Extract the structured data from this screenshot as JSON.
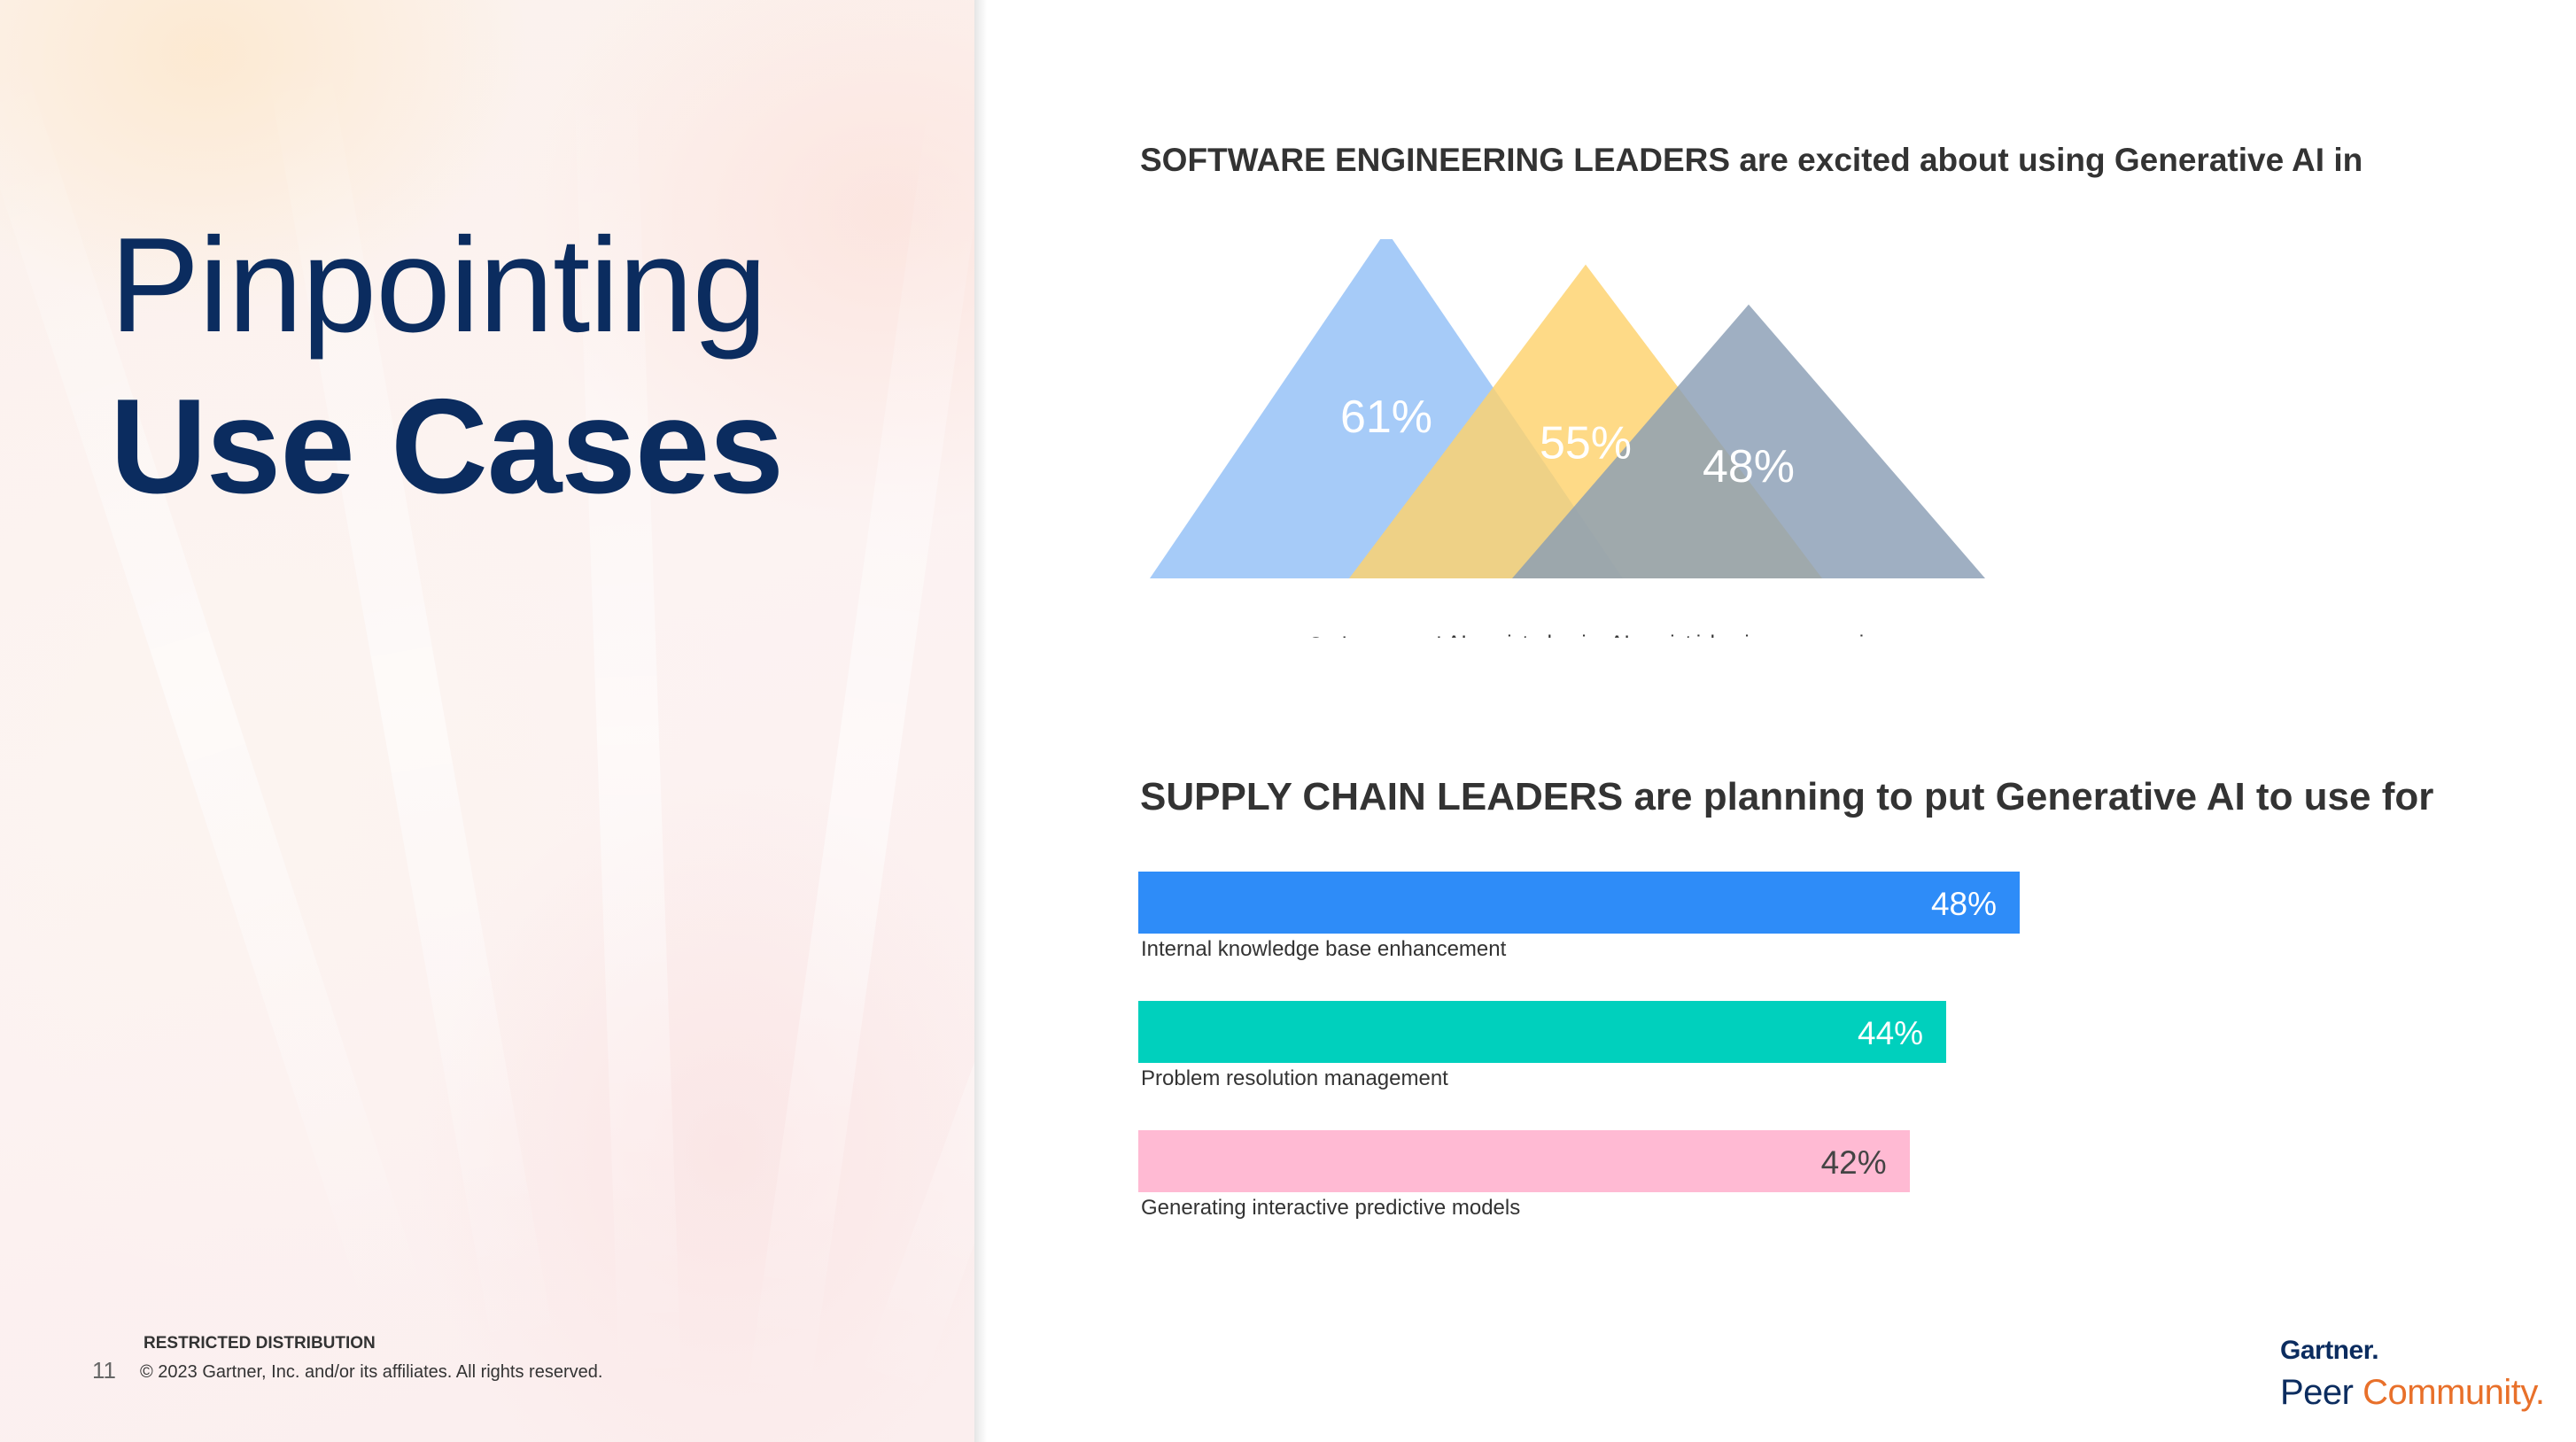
{
  "slide": {
    "title_line1": "Pinpointing",
    "title_line2": "Use Cases",
    "page_number": "11",
    "restricted": "RESTRICTED DISTRIBUTION",
    "copyright": "© 2023 Gartner, Inc. and/or its affiliates. All rights reserved.",
    "logo_brand": "Gartner.",
    "logo_peer": "Peer ",
    "logo_community": "Community.",
    "colors": {
      "title": "#0b2c5f",
      "logo_accent": "#e8702a"
    }
  },
  "chart_data": [
    {
      "type": "bar",
      "title": "SOFTWARE ENGINEERING LEADERS are excited about using Generative AI in",
      "mark": "triangle",
      "categories": [
        "Code generation",
        "AI-assisted pair programming",
        "AI-assisted pair programming"
      ],
      "values": [
        61,
        55,
        48
      ],
      "labels": [
        "61%",
        "55%",
        "48%"
      ],
      "colors": [
        "#93c0f7",
        "#fed26c",
        "#8a9db5"
      ]
    },
    {
      "type": "bar",
      "orientation": "horizontal",
      "title": "SUPPLY CHAIN LEADERS are planning to put Generative AI to use for",
      "categories": [
        "Internal knowledge base enhancement",
        "Problem resolution management",
        "Generating interactive predictive models"
      ],
      "values": [
        48,
        44,
        42
      ],
      "labels": [
        "48%",
        "44%",
        "42%"
      ],
      "colors": [
        "#2e8cf8",
        "#00d0bd",
        "#ffbad3"
      ],
      "label_colors": [
        "#ffffff",
        "#ffffff",
        "#444444"
      ]
    }
  ]
}
